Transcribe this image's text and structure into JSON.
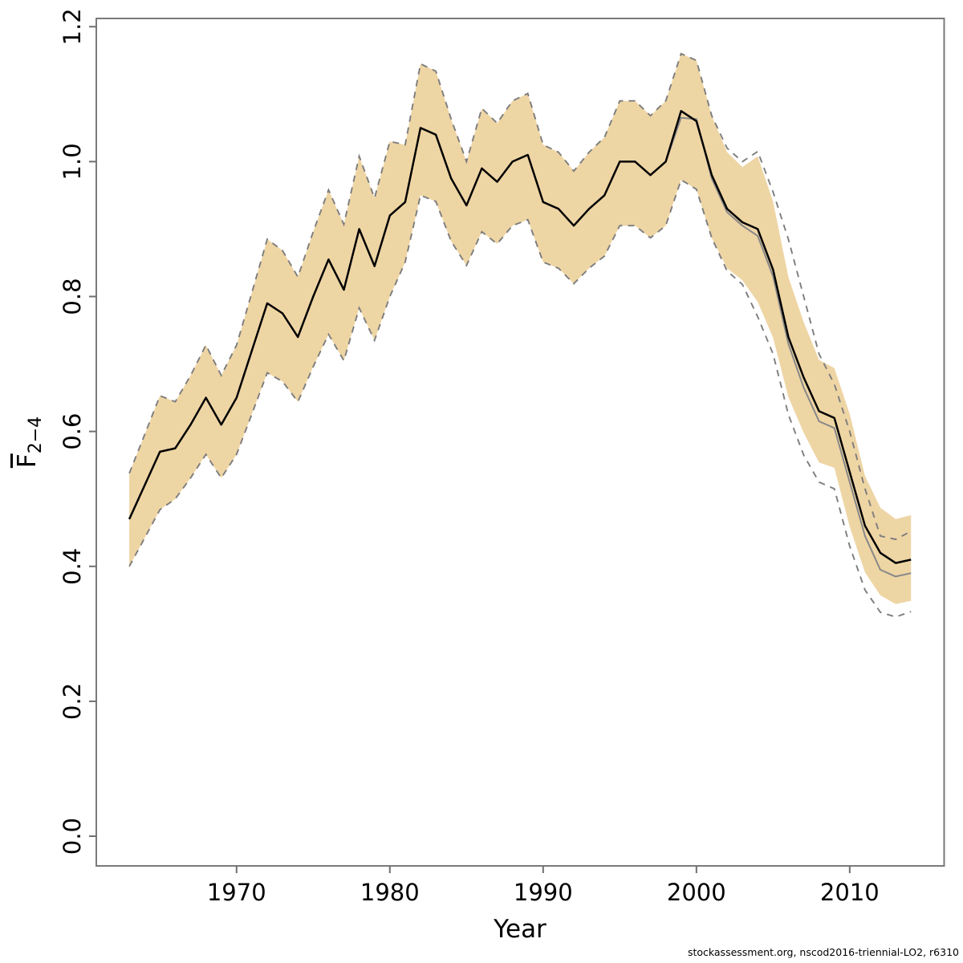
{
  "footer": {
    "text": "stockassessment.org, nscod2016-triennial-LO2, r6310"
  },
  "chart_data": {
    "type": "line",
    "title": "",
    "xlabel": "Year",
    "ylabel_main": "F",
    "ylabel_sub": "2−4",
    "xlim": [
      1960.85,
      2016.16
    ],
    "ylim": [
      -0.044,
      1.2122
    ],
    "x_ticks": [
      1970,
      1980,
      1990,
      2000,
      2010
    ],
    "y_ticks": [
      "0.0",
      "0.2",
      "0.4",
      "0.6",
      "0.8",
      "1.0",
      "1.2"
    ],
    "grid": false,
    "legend": "none",
    "colors": {
      "band_fill": "#eed5a4",
      "dashed_ci": "#7d7d7d",
      "line_black": "#000000",
      "line_grey": "#888888",
      "box": "#7a7a7a",
      "tick": "#6f6f6f",
      "label": "#000000"
    },
    "x": [
      1963,
      1964,
      1965,
      1966,
      1967,
      1968,
      1969,
      1970,
      1971,
      1972,
      1973,
      1974,
      1975,
      1976,
      1977,
      1978,
      1979,
      1980,
      1981,
      1982,
      1983,
      1984,
      1985,
      1986,
      1987,
      1988,
      1989,
      1990,
      1991,
      1992,
      1993,
      1994,
      1995,
      1996,
      1997,
      1998,
      1999,
      2000,
      2001,
      2002,
      2003,
      2004,
      2005,
      2006,
      2007,
      2008,
      2009,
      2010,
      2011,
      2012,
      2013,
      2014
    ],
    "series": [
      {
        "name": "black-line-current-run",
        "values": [
          0.47,
          0.52,
          0.57,
          0.575,
          0.61,
          0.65,
          0.61,
          0.65,
          0.72,
          0.79,
          0.775,
          0.74,
          0.8,
          0.855,
          0.81,
          0.9,
          0.845,
          0.92,
          0.94,
          1.05,
          1.04,
          0.975,
          0.935,
          0.99,
          0.97,
          1.0,
          1.01,
          0.94,
          0.93,
          0.905,
          0.93,
          0.95,
          1.0,
          1.0,
          0.98,
          1.0,
          1.075,
          1.06,
          0.98,
          0.93,
          0.91,
          0.9,
          0.84,
          0.74,
          0.68,
          0.63,
          0.62,
          0.54,
          0.46,
          0.42,
          0.405,
          0.41
        ]
      },
      {
        "name": "grey-line-comparison-run",
        "values": [
          0.47,
          0.52,
          0.57,
          0.575,
          0.61,
          0.65,
          0.61,
          0.65,
          0.72,
          0.79,
          0.775,
          0.74,
          0.8,
          0.855,
          0.81,
          0.9,
          0.845,
          0.92,
          0.94,
          1.05,
          1.04,
          0.975,
          0.935,
          0.99,
          0.97,
          1.0,
          1.01,
          0.94,
          0.93,
          0.905,
          0.93,
          0.95,
          1.0,
          1.0,
          0.98,
          1.0,
          1.065,
          1.063,
          0.975,
          0.925,
          0.905,
          0.89,
          0.83,
          0.73,
          0.665,
          0.615,
          0.605,
          0.525,
          0.445,
          0.395,
          0.385,
          0.39
        ]
      }
    ],
    "band": {
      "lo": [
        0.4,
        0.442,
        0.484,
        0.5,
        0.531,
        0.566,
        0.531,
        0.566,
        0.626,
        0.687,
        0.674,
        0.644,
        0.696,
        0.744,
        0.705,
        0.783,
        0.735,
        0.8,
        0.851,
        0.95,
        0.941,
        0.882,
        0.846,
        0.896,
        0.878,
        0.905,
        0.914,
        0.851,
        0.842,
        0.819,
        0.842,
        0.86,
        0.905,
        0.905,
        0.887,
        0.905,
        0.973,
        0.959,
        0.887,
        0.842,
        0.824,
        0.792,
        0.739,
        0.651,
        0.598,
        0.554,
        0.546,
        0.459,
        0.391,
        0.357,
        0.344,
        0.349
      ],
      "hi": [
        0.538,
        0.595,
        0.653,
        0.644,
        0.683,
        0.728,
        0.683,
        0.728,
        0.806,
        0.885,
        0.868,
        0.829,
        0.896,
        0.958,
        0.907,
        1.008,
        0.946,
        1.03,
        1.025,
        1.145,
        1.134,
        1.063,
        1.0,
        1.079,
        1.057,
        1.09,
        1.101,
        1.025,
        1.014,
        0.986,
        1.014,
        1.036,
        1.09,
        1.09,
        1.068,
        1.09,
        1.16,
        1.15,
        1.068,
        1.014,
        0.992,
        1.008,
        0.941,
        0.829,
        0.762,
        0.706,
        0.694,
        0.626,
        0.534,
        0.487,
        0.47,
        0.476
      ]
    },
    "dashed": {
      "lo": [
        0.4,
        0.442,
        0.484,
        0.5,
        0.531,
        0.566,
        0.531,
        0.566,
        0.626,
        0.687,
        0.674,
        0.644,
        0.696,
        0.744,
        0.705,
        0.783,
        0.735,
        0.8,
        0.851,
        0.95,
        0.941,
        0.882,
        0.846,
        0.896,
        0.878,
        0.905,
        0.914,
        0.851,
        0.842,
        0.819,
        0.842,
        0.86,
        0.905,
        0.905,
        0.887,
        0.905,
        0.973,
        0.959,
        0.887,
        0.838,
        0.818,
        0.77,
        0.715,
        0.625,
        0.565,
        0.525,
        0.515,
        0.43,
        0.365,
        0.332,
        0.325,
        0.333
      ],
      "hi": [
        0.538,
        0.595,
        0.653,
        0.644,
        0.683,
        0.728,
        0.683,
        0.728,
        0.806,
        0.885,
        0.868,
        0.829,
        0.896,
        0.958,
        0.907,
        1.008,
        0.946,
        1.03,
        1.025,
        1.145,
        1.134,
        1.063,
        1.0,
        1.079,
        1.057,
        1.09,
        1.101,
        1.025,
        1.014,
        0.986,
        1.014,
        1.036,
        1.09,
        1.09,
        1.068,
        1.09,
        1.16,
        1.15,
        1.068,
        1.02,
        1.0,
        1.015,
        0.955,
        0.885,
        0.8,
        0.715,
        0.67,
        0.6,
        0.515,
        0.445,
        0.44,
        0.452
      ]
    }
  }
}
